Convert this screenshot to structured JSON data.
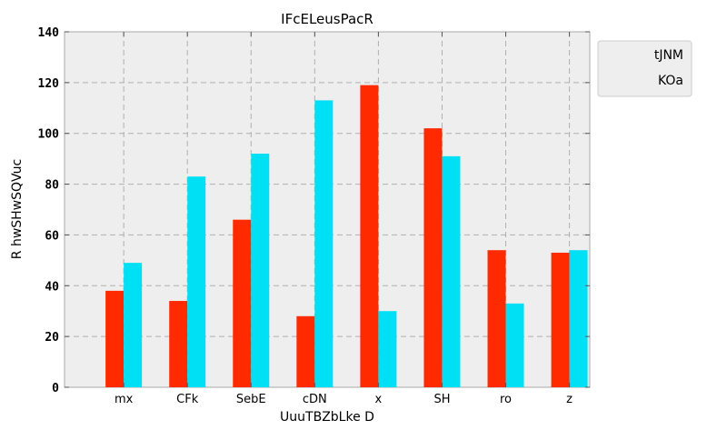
{
  "chart_data": {
    "type": "bar",
    "title": "IFcELeusPacR",
    "xlabel": "UuuTBZbLke D",
    "ylabel": "R hwSHwSQVuc",
    "categories": [
      "mx",
      "CFk",
      "SebE",
      "cDN",
      "x",
      "SH",
      "ro",
      "z"
    ],
    "series": [
      {
        "name": "tJNM",
        "color": "#ff2a00",
        "values": [
          38,
          34,
          66,
          28,
          119,
          102,
          54,
          53
        ]
      },
      {
        "name": "KOa",
        "color": "#00e0f5",
        "values": [
          49,
          83,
          92,
          113,
          30,
          91,
          33,
          54
        ]
      }
    ],
    "ylim": [
      0,
      140
    ],
    "yticks": [
      0,
      20,
      40,
      60,
      80,
      100,
      120,
      140
    ],
    "grid": true,
    "legend_position": "top-right",
    "plot_background": "#eeeeee"
  }
}
